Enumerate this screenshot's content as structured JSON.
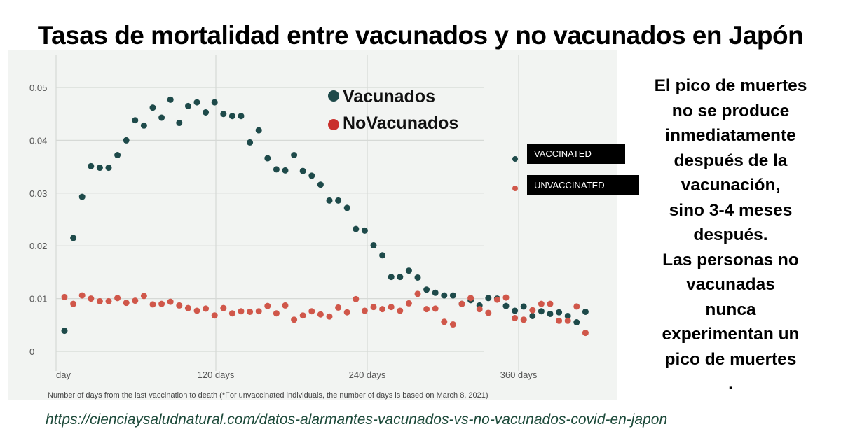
{
  "title": "Tasas de mortalidad entre vacunados y no vacunados en Japón",
  "side_text": [
    "El pico de muertes",
    "no se produce",
    "inmediatamente",
    "después de la",
    "vacunación,",
    "sino 3-4 meses",
    "después.",
    "Las personas no",
    "vacunadas",
    "nunca",
    "experimentan un",
    "pico de muertes",
    "."
  ],
  "url": "https://cienciaysaludnatural.com/datos-alarmantes-vacunados-vs-no-vacunados-covid-en-japon",
  "chart_data": {
    "type": "scatter",
    "xlabel": "Number of days from the last vaccination to death (*For unvaccinated individuals, the number of days is based on March 8, 2021)",
    "x_tick_labels": [
      "day",
      "120 days",
      "240 days",
      "360 days"
    ],
    "x_tick_values": [
      0,
      120,
      240,
      360
    ],
    "y_tick_labels": [
      "0",
      "0.01",
      "0.02",
      "0.03",
      "0.04",
      "0.05"
    ],
    "ylim": [
      0,
      0.05
    ],
    "xlim": [
      0,
      420
    ],
    "grid": true,
    "overlay_legend": [
      {
        "label": "Vacunados",
        "color": "#1e4a4a"
      },
      {
        "label": "NoVacunados",
        "color": "#c9302c"
      }
    ],
    "inner_legend": [
      {
        "label": "VACCINATED",
        "color": "#1e4a4a"
      },
      {
        "label": "UNVACCINATED",
        "color": "#d0574a"
      }
    ],
    "series": [
      {
        "name": "Vacunados",
        "color": "#1e4a4a",
        "x": [
          0,
          7,
          14,
          21,
          28,
          35,
          42,
          49,
          56,
          63,
          70,
          77,
          84,
          91,
          98,
          105,
          112,
          119,
          126,
          133,
          140,
          147,
          154,
          161,
          168,
          175,
          182,
          189,
          196,
          203,
          210,
          217,
          224,
          231,
          238,
          245,
          252,
          259,
          266,
          273,
          280,
          287,
          294,
          301,
          308,
          315,
          322,
          329,
          336,
          343,
          350,
          357,
          364,
          371,
          378,
          385,
          392,
          399,
          406,
          413
        ],
        "values": [
          0.0039,
          0.0215,
          0.0293,
          0.0351,
          0.0348,
          0.0348,
          0.0372,
          0.04,
          0.0438,
          0.0428,
          0.0462,
          0.0443,
          0.0477,
          0.0433,
          0.0465,
          0.0472,
          0.0453,
          0.0472,
          0.045,
          0.0446,
          0.0446,
          0.0396,
          0.0419,
          0.0366,
          0.0345,
          0.0343,
          0.0372,
          0.0342,
          0.0333,
          0.0316,
          0.0286,
          0.0286,
          0.0272,
          0.0232,
          0.0229,
          0.0201,
          0.0182,
          0.0141,
          0.0141,
          0.0153,
          0.014,
          0.0117,
          0.0111,
          0.0106,
          0.0106,
          0.009,
          0.0097,
          0.0087,
          0.0101,
          0.01,
          0.0086,
          0.0077,
          0.0085,
          0.0067,
          0.0076,
          0.0071,
          0.0074,
          0.0067,
          0.0055,
          0.0075
        ]
      },
      {
        "name": "NoVacunados",
        "color": "#d0574a",
        "x": [
          0,
          7,
          14,
          21,
          28,
          35,
          42,
          49,
          56,
          63,
          70,
          77,
          84,
          91,
          98,
          105,
          112,
          119,
          126,
          133,
          140,
          147,
          154,
          161,
          168,
          175,
          182,
          189,
          196,
          203,
          210,
          217,
          224,
          231,
          238,
          245,
          252,
          259,
          266,
          273,
          280,
          287,
          294,
          301,
          308,
          315,
          322,
          329,
          336,
          343,
          350,
          357,
          364,
          371,
          378,
          385,
          392,
          399,
          406,
          413
        ],
        "values": [
          0.0103,
          0.009,
          0.0106,
          0.01,
          0.0095,
          0.0095,
          0.0101,
          0.0092,
          0.0096,
          0.0105,
          0.0089,
          0.009,
          0.0094,
          0.0087,
          0.0082,
          0.0077,
          0.0081,
          0.0068,
          0.0082,
          0.0072,
          0.0076,
          0.0075,
          0.0076,
          0.0086,
          0.0072,
          0.0087,
          0.006,
          0.0068,
          0.0076,
          0.007,
          0.0066,
          0.0083,
          0.0074,
          0.0099,
          0.0077,
          0.0084,
          0.008,
          0.0084,
          0.0077,
          0.0091,
          0.0109,
          0.008,
          0.0081,
          0.0056,
          0.0051,
          0.009,
          0.0101,
          0.008,
          0.0073,
          0.0098,
          0.0102,
          0.0063,
          0.006,
          0.0078,
          0.009,
          0.009,
          0.0058,
          0.0058,
          0.0085,
          0.0035
        ]
      }
    ]
  }
}
